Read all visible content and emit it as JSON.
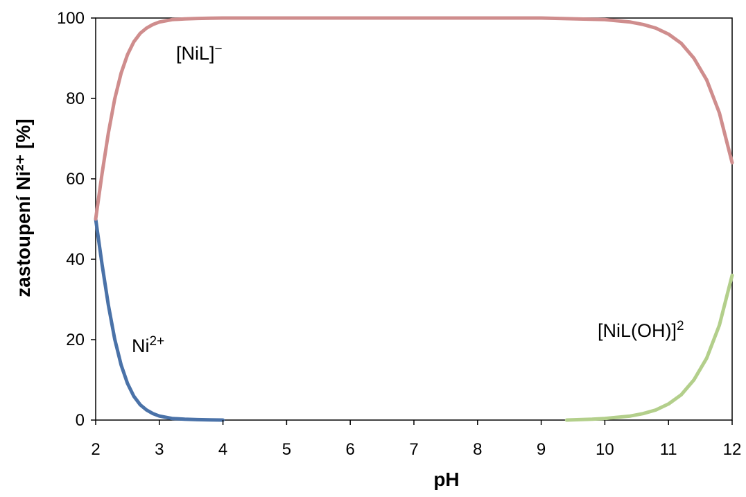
{
  "chart_data": {
    "type": "line",
    "xlabel": "pH",
    "ylabel": "zastoupení Ni²⁺ [%]",
    "xlim": [
      2,
      12
    ],
    "ylim": [
      0,
      100
    ],
    "xticks": [
      2,
      3,
      4,
      5,
      6,
      7,
      8,
      9,
      10,
      11,
      12
    ],
    "yticks": [
      0,
      20,
      40,
      60,
      80,
      100
    ],
    "grid": false,
    "legend": "none",
    "series": [
      {
        "name": "Ni2+",
        "label_main": "Ni",
        "label_sup": "2+",
        "color": "#4a72a8",
        "x": [
          2.0,
          2.1,
          2.2,
          2.3,
          2.4,
          2.5,
          2.6,
          2.7,
          2.8,
          2.9,
          3.0,
          3.2,
          3.4,
          3.6,
          3.8,
          4.0
        ],
        "y": [
          50,
          38.7,
          28.5,
          20.1,
          13.7,
          9.1,
          5.9,
          3.8,
          2.5,
          1.6,
          1.0,
          0.4,
          0.2,
          0.1,
          0.05,
          0.0
        ]
      },
      {
        "name": "[NiL]-",
        "label_main": "[NiL]",
        "label_sup": "−",
        "color": "#cf8d8d",
        "x": [
          2.0,
          2.1,
          2.2,
          2.3,
          2.4,
          2.5,
          2.6,
          2.7,
          2.8,
          2.9,
          3.0,
          3.2,
          3.4,
          3.6,
          3.8,
          4.0,
          5.0,
          6.0,
          7.0,
          8.0,
          9.0,
          10.0,
          10.4,
          10.6,
          10.8,
          11.0,
          11.2,
          11.4,
          11.6,
          11.8,
          12.0
        ],
        "y": [
          50,
          61.3,
          71.5,
          79.9,
          86.3,
          90.9,
          94.1,
          96.2,
          97.5,
          98.4,
          99.0,
          99.6,
          99.8,
          99.9,
          99.95,
          100,
          100,
          100,
          100,
          100,
          100,
          99.6,
          99.0,
          98.4,
          97.5,
          96.0,
          93.7,
          90.0,
          84.6,
          76.4,
          64.0
        ]
      },
      {
        "name": "[NiL(OH)]2",
        "label_main": "[NiL(OH)]",
        "label_sup": "2",
        "color": "#b3cf8b",
        "x": [
          9.4,
          9.8,
          10.0,
          10.4,
          10.6,
          10.8,
          11.0,
          11.2,
          11.4,
          11.6,
          11.8,
          12.0
        ],
        "y": [
          0.0,
          0.2,
          0.4,
          1.0,
          1.6,
          2.5,
          4.0,
          6.3,
          10.0,
          15.4,
          23.6,
          36.0
        ]
      }
    ]
  }
}
